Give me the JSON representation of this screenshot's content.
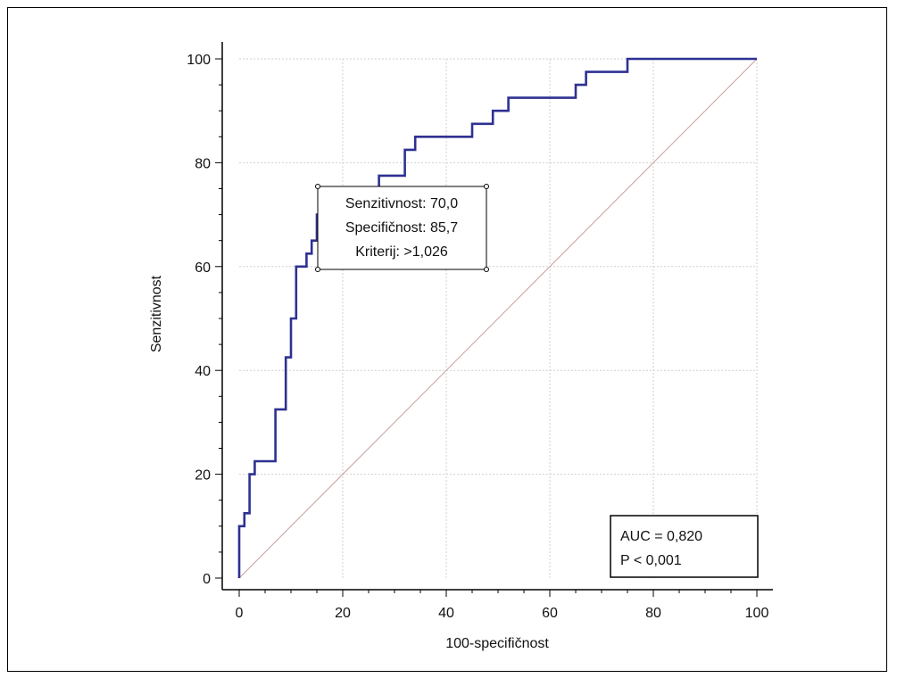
{
  "chart_data": {
    "type": "line",
    "title": "",
    "xlabel": "100-specifičnost",
    "ylabel": "Senzitivnost",
    "xlim": [
      0,
      100
    ],
    "ylim": [
      0,
      100
    ],
    "xticks": [
      "0",
      "20",
      "40",
      "60",
      "80",
      "100"
    ],
    "yticks": [
      "0",
      "20",
      "40",
      "60",
      "80",
      "100"
    ],
    "grid": true,
    "series": [
      {
        "color": "#2e3192",
        "style": "step",
        "points": [
          [
            0,
            0
          ],
          [
            0,
            10
          ],
          [
            1,
            10
          ],
          [
            1,
            12.5
          ],
          [
            2,
            12.5
          ],
          [
            2,
            20
          ],
          [
            3,
            20
          ],
          [
            3,
            22.5
          ],
          [
            7,
            22.5
          ],
          [
            7,
            32.5
          ],
          [
            9,
            32.5
          ],
          [
            9,
            42.5
          ],
          [
            10,
            42.5
          ],
          [
            10,
            50
          ],
          [
            11,
            50
          ],
          [
            11,
            60
          ],
          [
            13,
            60
          ],
          [
            13,
            62.5
          ],
          [
            14,
            62.5
          ],
          [
            14,
            65
          ],
          [
            15,
            65
          ],
          [
            15,
            70
          ],
          [
            16,
            70
          ],
          [
            16,
            72.5
          ],
          [
            27,
            72.5
          ],
          [
            27,
            77.5
          ],
          [
            32,
            77.5
          ],
          [
            32,
            82.5
          ],
          [
            34,
            82.5
          ],
          [
            34,
            85
          ],
          [
            45,
            85
          ],
          [
            45,
            87.5
          ],
          [
            49,
            87.5
          ],
          [
            49,
            90
          ],
          [
            52,
            90
          ],
          [
            52,
            92.5
          ],
          [
            65,
            92.5
          ],
          [
            65,
            95
          ],
          [
            67,
            95
          ],
          [
            67,
            97.5
          ],
          [
            75,
            97.5
          ],
          [
            75,
            100
          ],
          [
            100,
            100
          ]
        ]
      },
      {
        "color": "#c9a0a0",
        "style": "reference",
        "points": [
          [
            0,
            0
          ],
          [
            100,
            100
          ]
        ]
      }
    ],
    "annotations": [
      {
        "lines": [
          "Senzitivnost: 70,0",
          "Specifičnost: 85,7",
          "Kriterij: >1,026"
        ]
      },
      {
        "lines": [
          "AUC = 0,820",
          "P < 0,001"
        ]
      }
    ]
  }
}
